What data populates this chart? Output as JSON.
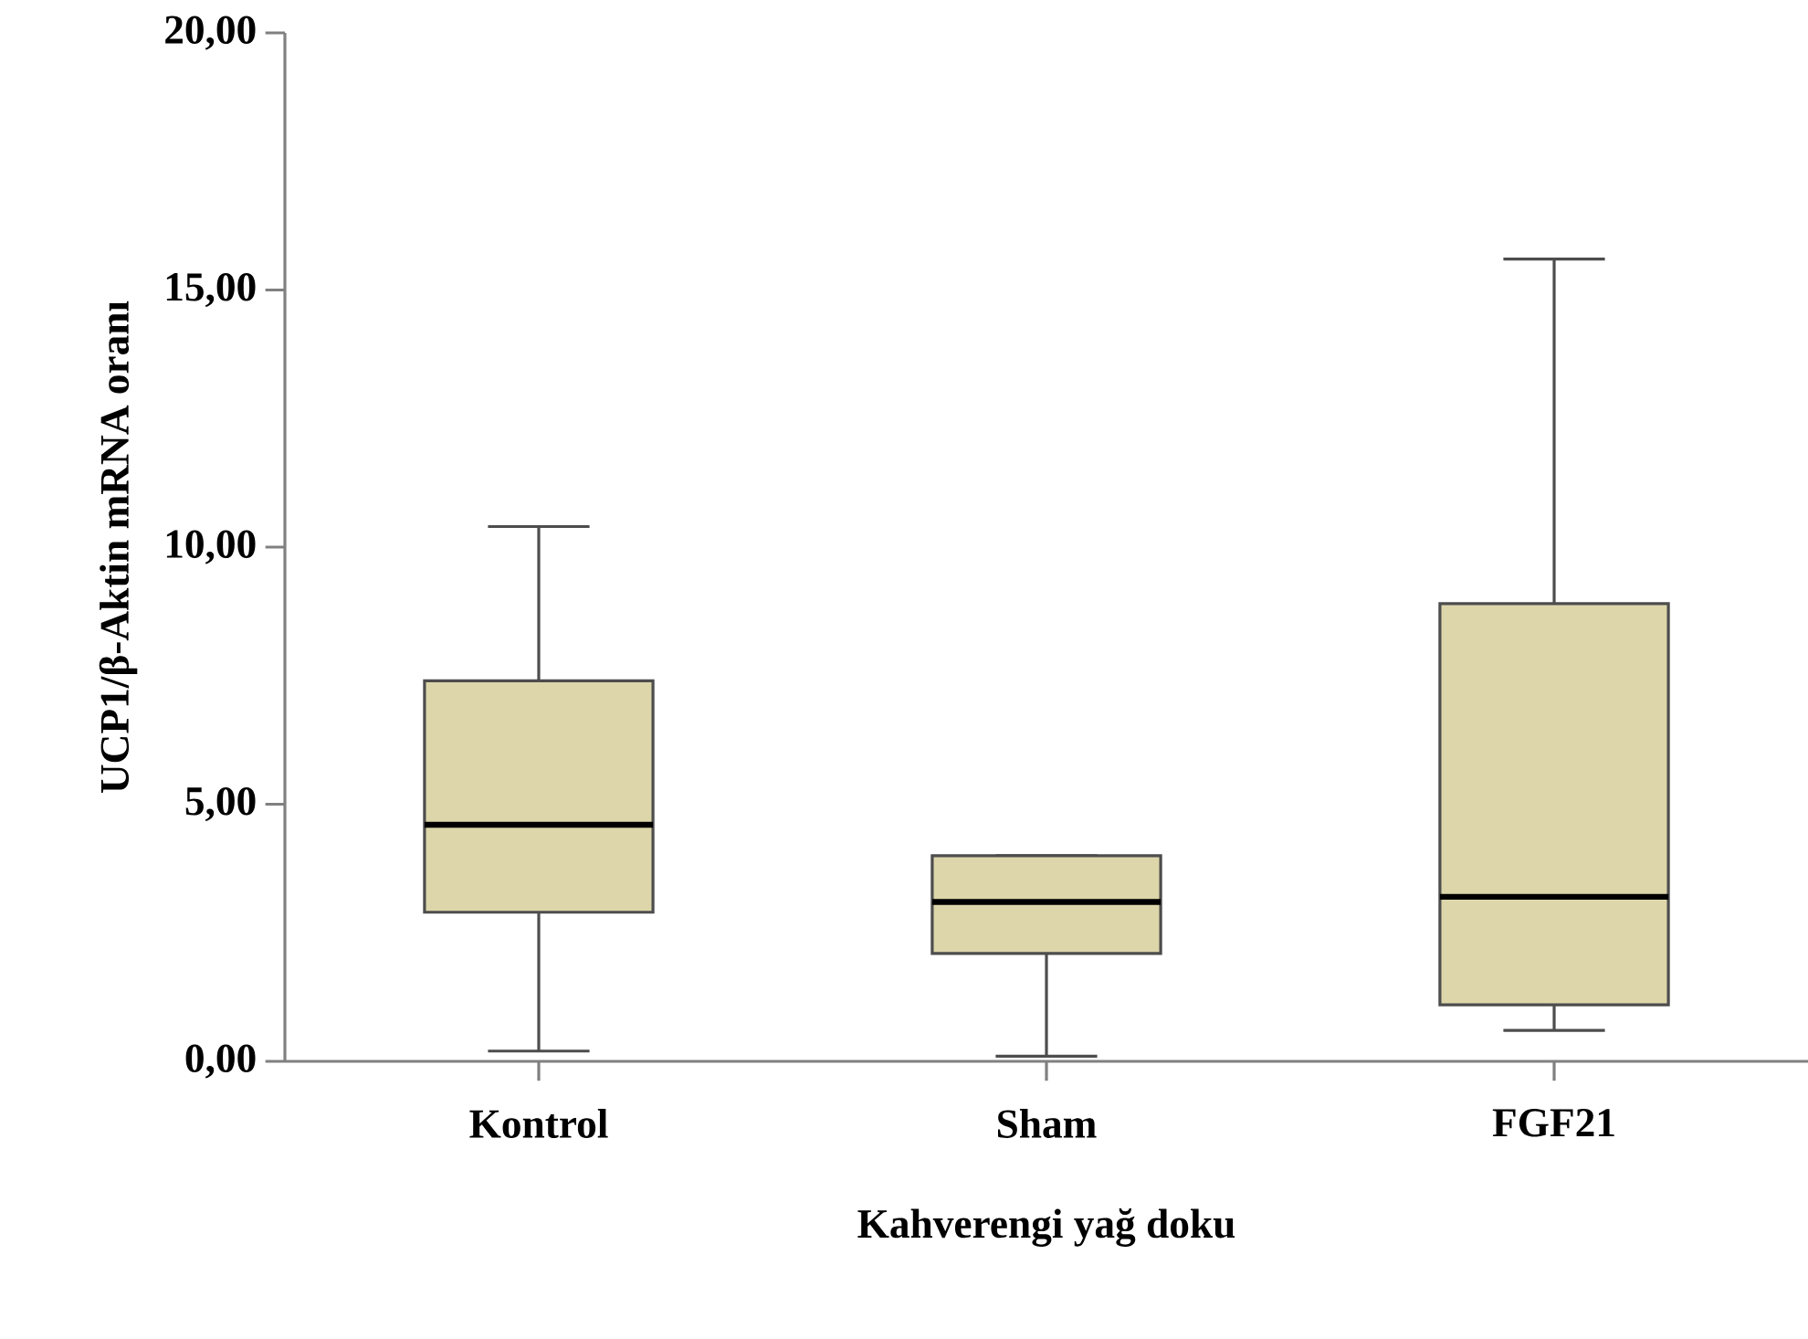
{
  "chart_data": {
    "type": "box",
    "xlabel": "Kahverengi yağ doku",
    "ylabel": "UCP1/β-Aktin mRNA oranı",
    "categories": [
      "Kontrol",
      "Sham",
      "FGF21"
    ],
    "boxes": [
      {
        "low": 0.2,
        "q1": 2.9,
        "median": 4.6,
        "q3": 7.4,
        "high": 10.4
      },
      {
        "low": 0.1,
        "q1": 2.1,
        "median": 3.1,
        "q3": 4.0,
        "high": 4.0
      },
      {
        "low": 0.6,
        "q1": 1.1,
        "median": 3.2,
        "q3": 8.9,
        "high": 15.6
      }
    ],
    "color": "#ddd6aa",
    "ylim": [
      0,
      20
    ],
    "yticks": [
      {
        "value": 0,
        "label": "0,00"
      },
      {
        "value": 5,
        "label": "5,00"
      },
      {
        "value": 10,
        "label": "10,00"
      },
      {
        "value": 15,
        "label": "15,00"
      },
      {
        "value": 20,
        "label": "20,00"
      }
    ]
  }
}
